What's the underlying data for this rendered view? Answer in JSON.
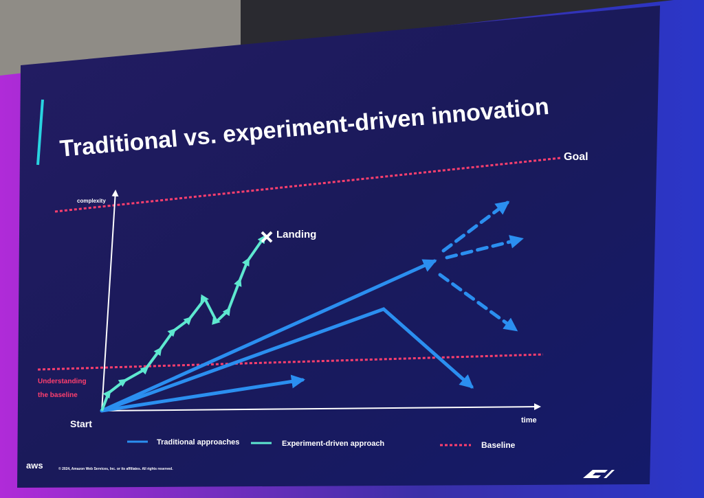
{
  "title": "Traditional vs. experiment-driven innovation",
  "labels": {
    "goal": "Goal",
    "y_axis": "complexity",
    "landing": "Landing",
    "baseline": [
      "Understanding",
      "the baseline"
    ],
    "start": "Start",
    "x_axis": "time"
  },
  "legend": [
    "Traditional approaches",
    "Experiment-driven approach",
    "Baseline"
  ],
  "footer": {
    "logo": "aws",
    "copyright": "© 2024, Amazon Web Services, Inc. or its affiliates. All rights reserved."
  }
}
